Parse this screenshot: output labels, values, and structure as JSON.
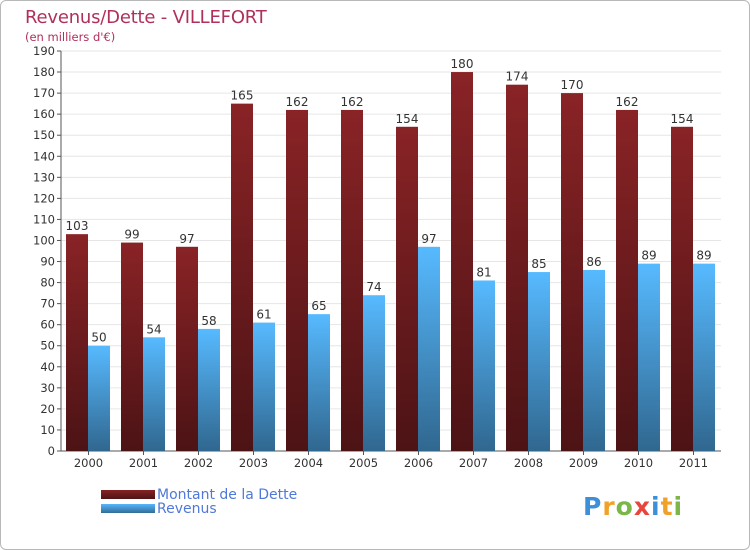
{
  "chart_data": {
    "type": "bar",
    "title": "Revenus/Dette - VILLEFORT",
    "subtitle": "(en milliers d'€)",
    "categories": [
      "2000",
      "2001",
      "2002",
      "2003",
      "2004",
      "2005",
      "2006",
      "2007",
      "2008",
      "2009",
      "2010",
      "2011"
    ],
    "series": [
      {
        "name": "Montant de la Dette",
        "color": "#7a1f22",
        "values": [
          103,
          99,
          97,
          165,
          162,
          162,
          154,
          180,
          174,
          170,
          162,
          154
        ]
      },
      {
        "name": "Revenus",
        "color": "#4ea6e6",
        "values": [
          50,
          54,
          58,
          61,
          65,
          74,
          97,
          81,
          85,
          86,
          89,
          89
        ]
      }
    ],
    "ylim": [
      0,
      190
    ],
    "ytick_step": 10,
    "grid": true
  },
  "logo": {
    "letters": [
      {
        "ch": "P",
        "color": "#3d8fd8"
      },
      {
        "ch": "r",
        "color": "#f0a12a"
      },
      {
        "ch": "o",
        "color": "#7ab648"
      },
      {
        "ch": "x",
        "color": "#e8453c"
      },
      {
        "ch": "i",
        "color": "#3d8fd8"
      },
      {
        "ch": "t",
        "color": "#f0a12a"
      },
      {
        "ch": "i",
        "color": "#7ab648"
      }
    ]
  }
}
